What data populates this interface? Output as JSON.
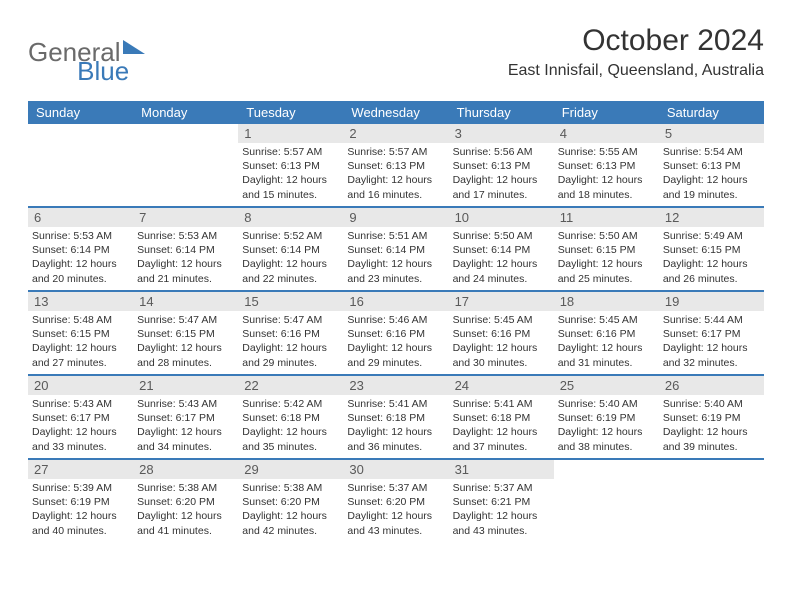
{
  "logo": {
    "text1": "General",
    "text2": "Blue"
  },
  "title": "October 2024",
  "location": "East Innisfail, Queensland, Australia",
  "header_bg": "#3a7ab8",
  "daynum_bg": "#e8e8e8",
  "day_names": [
    "Sunday",
    "Monday",
    "Tuesday",
    "Wednesday",
    "Thursday",
    "Friday",
    "Saturday"
  ],
  "weeks": [
    [
      null,
      null,
      {
        "n": "1",
        "sunrise": "5:57 AM",
        "sunset": "6:13 PM",
        "daylight": "12 hours and 15 minutes."
      },
      {
        "n": "2",
        "sunrise": "5:57 AM",
        "sunset": "6:13 PM",
        "daylight": "12 hours and 16 minutes."
      },
      {
        "n": "3",
        "sunrise": "5:56 AM",
        "sunset": "6:13 PM",
        "daylight": "12 hours and 17 minutes."
      },
      {
        "n": "4",
        "sunrise": "5:55 AM",
        "sunset": "6:13 PM",
        "daylight": "12 hours and 18 minutes."
      },
      {
        "n": "5",
        "sunrise": "5:54 AM",
        "sunset": "6:13 PM",
        "daylight": "12 hours and 19 minutes."
      }
    ],
    [
      {
        "n": "6",
        "sunrise": "5:53 AM",
        "sunset": "6:14 PM",
        "daylight": "12 hours and 20 minutes."
      },
      {
        "n": "7",
        "sunrise": "5:53 AM",
        "sunset": "6:14 PM",
        "daylight": "12 hours and 21 minutes."
      },
      {
        "n": "8",
        "sunrise": "5:52 AM",
        "sunset": "6:14 PM",
        "daylight": "12 hours and 22 minutes."
      },
      {
        "n": "9",
        "sunrise": "5:51 AM",
        "sunset": "6:14 PM",
        "daylight": "12 hours and 23 minutes."
      },
      {
        "n": "10",
        "sunrise": "5:50 AM",
        "sunset": "6:14 PM",
        "daylight": "12 hours and 24 minutes."
      },
      {
        "n": "11",
        "sunrise": "5:50 AM",
        "sunset": "6:15 PM",
        "daylight": "12 hours and 25 minutes."
      },
      {
        "n": "12",
        "sunrise": "5:49 AM",
        "sunset": "6:15 PM",
        "daylight": "12 hours and 26 minutes."
      }
    ],
    [
      {
        "n": "13",
        "sunrise": "5:48 AM",
        "sunset": "6:15 PM",
        "daylight": "12 hours and 27 minutes."
      },
      {
        "n": "14",
        "sunrise": "5:47 AM",
        "sunset": "6:15 PM",
        "daylight": "12 hours and 28 minutes."
      },
      {
        "n": "15",
        "sunrise": "5:47 AM",
        "sunset": "6:16 PM",
        "daylight": "12 hours and 29 minutes."
      },
      {
        "n": "16",
        "sunrise": "5:46 AM",
        "sunset": "6:16 PM",
        "daylight": "12 hours and 29 minutes."
      },
      {
        "n": "17",
        "sunrise": "5:45 AM",
        "sunset": "6:16 PM",
        "daylight": "12 hours and 30 minutes."
      },
      {
        "n": "18",
        "sunrise": "5:45 AM",
        "sunset": "6:16 PM",
        "daylight": "12 hours and 31 minutes."
      },
      {
        "n": "19",
        "sunrise": "5:44 AM",
        "sunset": "6:17 PM",
        "daylight": "12 hours and 32 minutes."
      }
    ],
    [
      {
        "n": "20",
        "sunrise": "5:43 AM",
        "sunset": "6:17 PM",
        "daylight": "12 hours and 33 minutes."
      },
      {
        "n": "21",
        "sunrise": "5:43 AM",
        "sunset": "6:17 PM",
        "daylight": "12 hours and 34 minutes."
      },
      {
        "n": "22",
        "sunrise": "5:42 AM",
        "sunset": "6:18 PM",
        "daylight": "12 hours and 35 minutes."
      },
      {
        "n": "23",
        "sunrise": "5:41 AM",
        "sunset": "6:18 PM",
        "daylight": "12 hours and 36 minutes."
      },
      {
        "n": "24",
        "sunrise": "5:41 AM",
        "sunset": "6:18 PM",
        "daylight": "12 hours and 37 minutes."
      },
      {
        "n": "25",
        "sunrise": "5:40 AM",
        "sunset": "6:19 PM",
        "daylight": "12 hours and 38 minutes."
      },
      {
        "n": "26",
        "sunrise": "5:40 AM",
        "sunset": "6:19 PM",
        "daylight": "12 hours and 39 minutes."
      }
    ],
    [
      {
        "n": "27",
        "sunrise": "5:39 AM",
        "sunset": "6:19 PM",
        "daylight": "12 hours and 40 minutes."
      },
      {
        "n": "28",
        "sunrise": "5:38 AM",
        "sunset": "6:20 PM",
        "daylight": "12 hours and 41 minutes."
      },
      {
        "n": "29",
        "sunrise": "5:38 AM",
        "sunset": "6:20 PM",
        "daylight": "12 hours and 42 minutes."
      },
      {
        "n": "30",
        "sunrise": "5:37 AM",
        "sunset": "6:20 PM",
        "daylight": "12 hours and 43 minutes."
      },
      {
        "n": "31",
        "sunrise": "5:37 AM",
        "sunset": "6:21 PM",
        "daylight": "12 hours and 43 minutes."
      },
      null,
      null
    ]
  ],
  "labels": {
    "sunrise": "Sunrise:",
    "sunset": "Sunset:",
    "daylight": "Daylight:"
  }
}
